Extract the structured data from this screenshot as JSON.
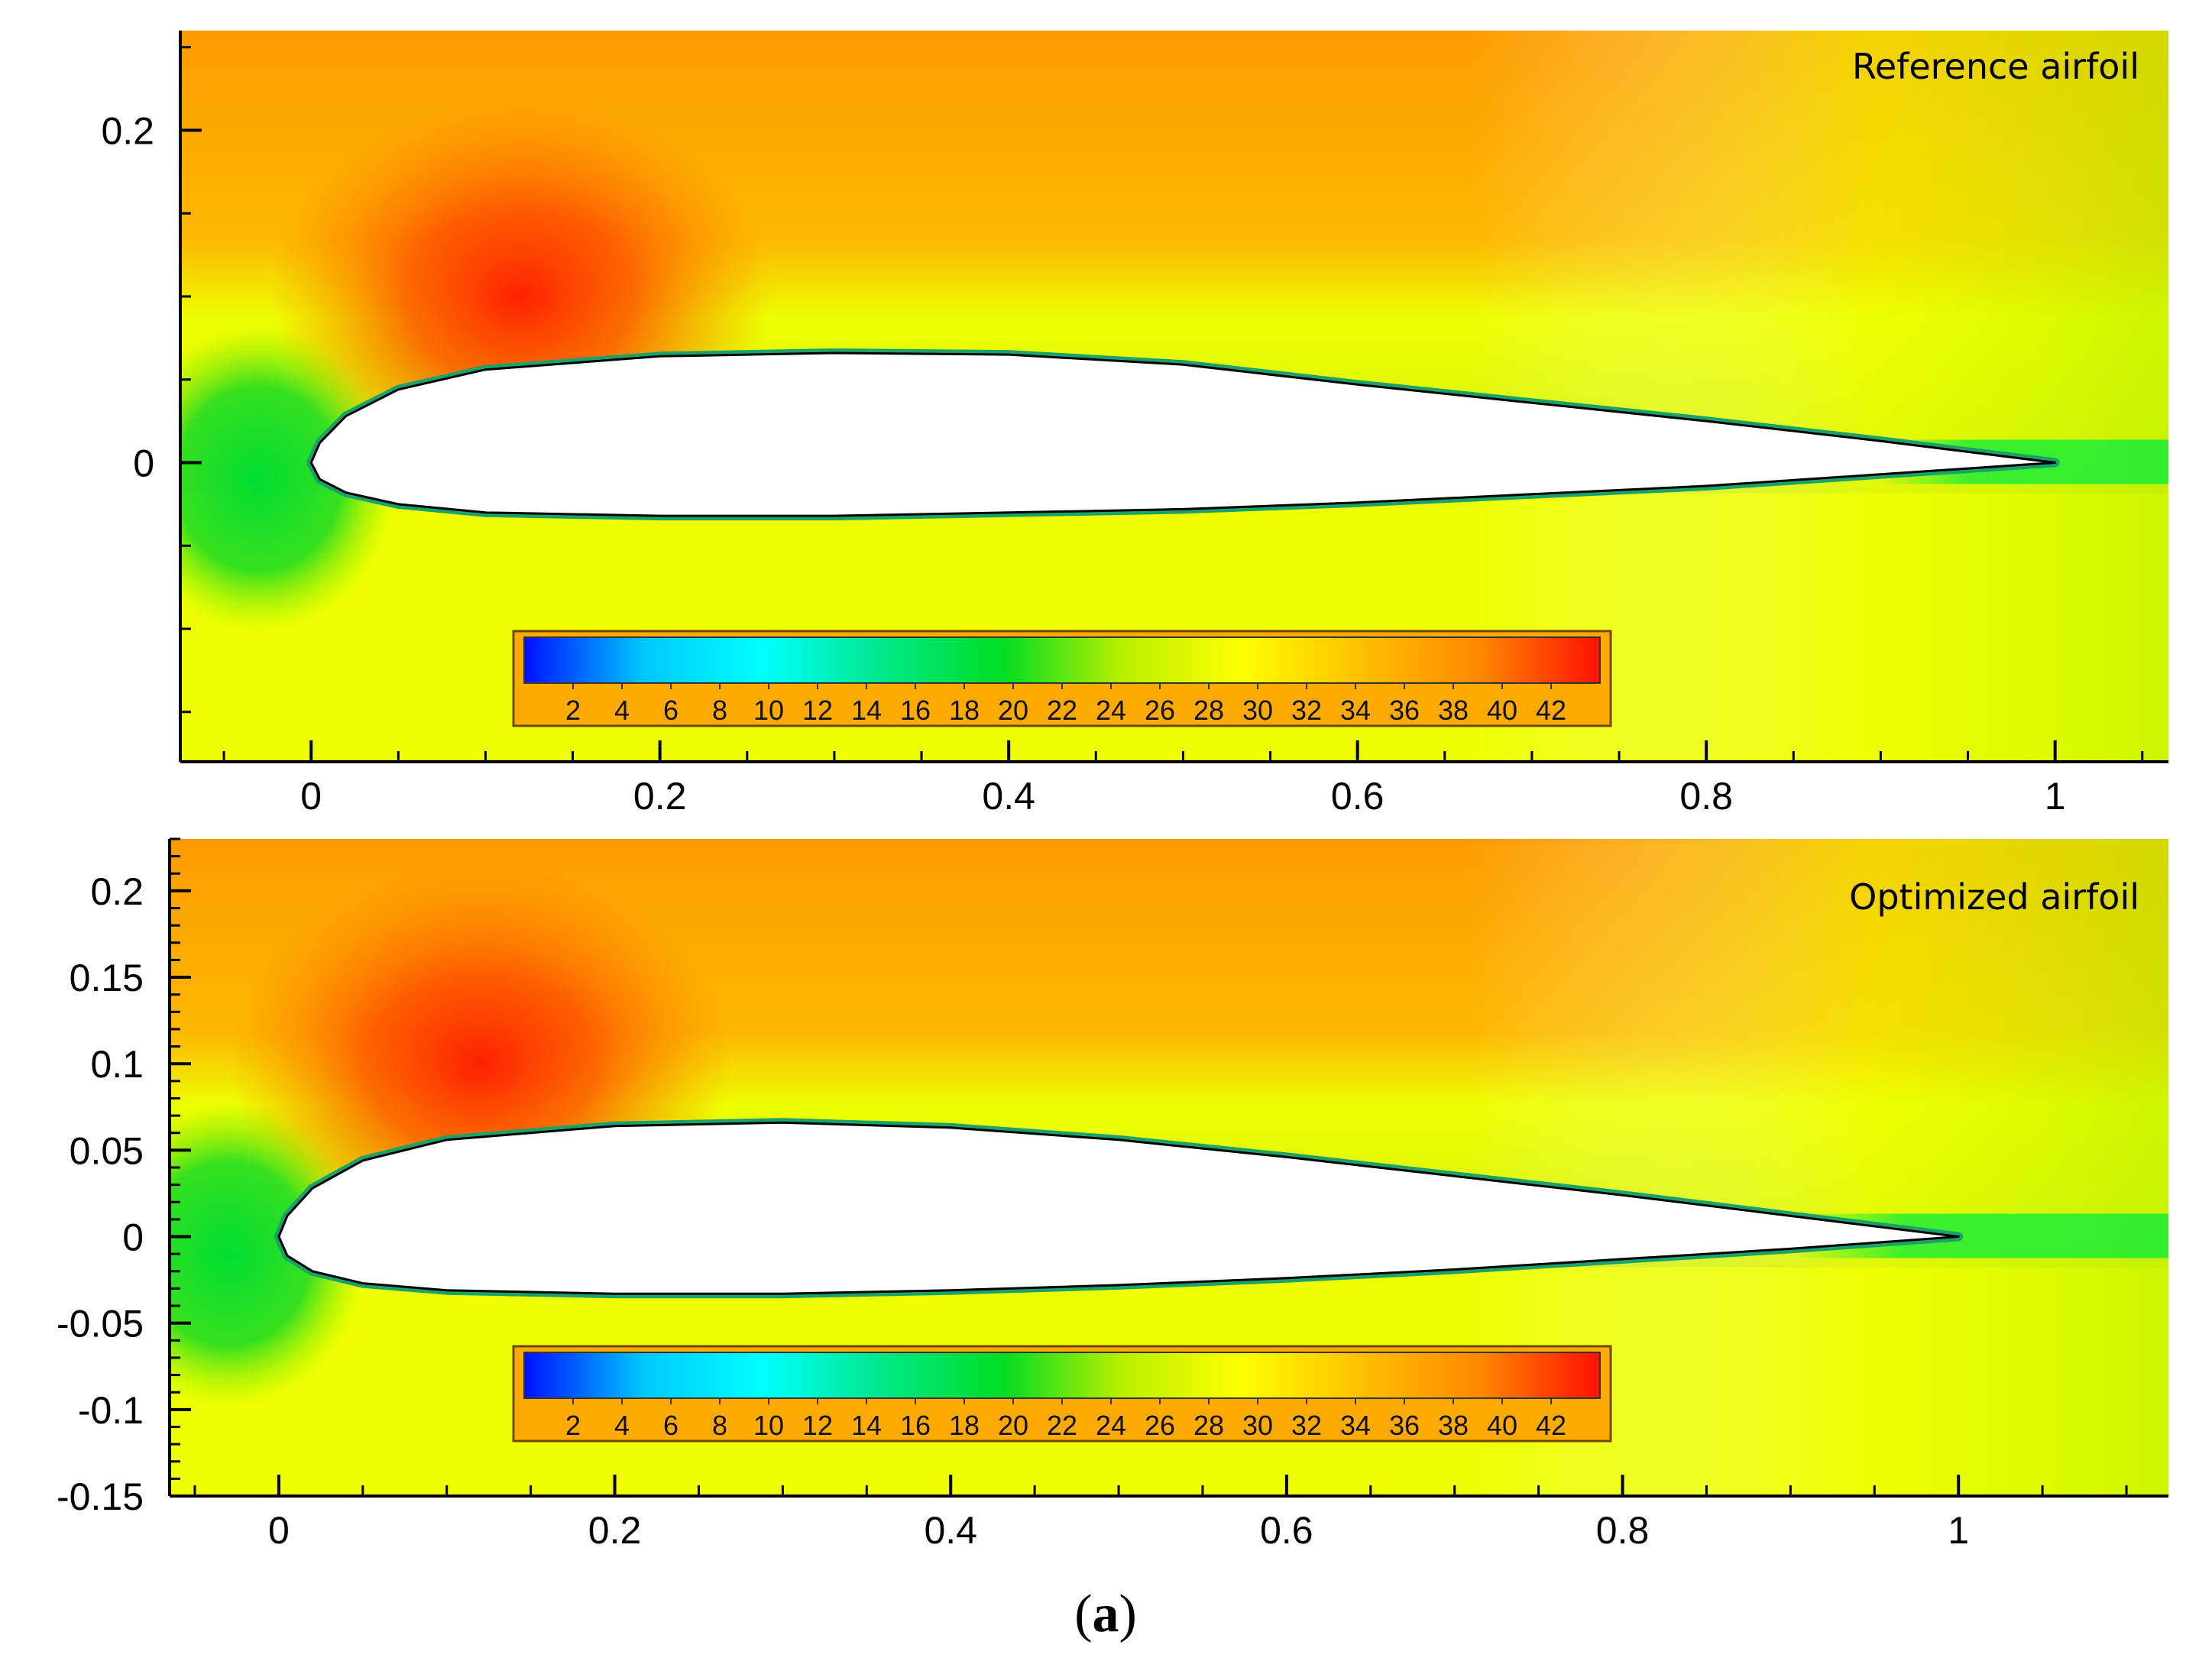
{
  "colors": {
    "scale": [
      "#0010ff",
      "#00c8ff",
      "#00ffff",
      "#00e88a",
      "#00dd22",
      "#b8f000",
      "#ffff00",
      "#ffc000",
      "#ff8800",
      "#ff1000"
    ],
    "field_green": "#22dd22",
    "field_yellow": "#eeff00",
    "field_orange": "#ff9000",
    "field_red": "#ff2000",
    "colorbar_frame": "#ffaa00",
    "airfoil": "#ffffff"
  },
  "caption": {
    "open": "(",
    "letter": "a",
    "close": ")"
  },
  "chart_data": [
    {
      "type": "heatmap",
      "title": "Reference airfoil",
      "xlabel": "",
      "ylabel": "",
      "xlim": [
        -0.075,
        1.065
      ],
      "ylim": [
        -0.18,
        0.26
      ],
      "xticks": [
        0,
        0.2,
        0.4,
        0.6,
        0.8,
        1
      ],
      "xtick_labels": [
        "0",
        "0.2",
        "0.4",
        "0.6",
        "0.8",
        "1"
      ],
      "yticks": [
        0,
        0.2
      ],
      "ytick_labels": [
        "0",
        "0.2"
      ],
      "airfoil_upper": [
        [
          0,
          0
        ],
        [
          0.005,
          0.012
        ],
        [
          0.02,
          0.028
        ],
        [
          0.05,
          0.044
        ],
        [
          0.1,
          0.056
        ],
        [
          0.2,
          0.064
        ],
        [
          0.3,
          0.066
        ],
        [
          0.4,
          0.065
        ],
        [
          0.5,
          0.059
        ],
        [
          0.6,
          0.047
        ],
        [
          0.7,
          0.036
        ],
        [
          0.8,
          0.025
        ],
        [
          0.9,
          0.013
        ],
        [
          1.0,
          0.0
        ]
      ],
      "airfoil_lower": [
        [
          0,
          0
        ],
        [
          0.005,
          -0.01
        ],
        [
          0.02,
          -0.018
        ],
        [
          0.05,
          -0.025
        ],
        [
          0.1,
          -0.03
        ],
        [
          0.2,
          -0.032
        ],
        [
          0.3,
          -0.032
        ],
        [
          0.4,
          -0.03
        ],
        [
          0.5,
          -0.028
        ],
        [
          0.6,
          -0.024
        ],
        [
          0.7,
          -0.019
        ],
        [
          0.8,
          -0.014
        ],
        [
          0.9,
          -0.007
        ],
        [
          1.0,
          0.0
        ]
      ],
      "colorbar": {
        "min": 0,
        "max": 44,
        "ticks": [
          2,
          4,
          6,
          8,
          10,
          12,
          14,
          16,
          18,
          20,
          22,
          24,
          26,
          28,
          30,
          32,
          34,
          36,
          38,
          40,
          42
        ],
        "tick_labels": [
          "2",
          "4",
          "6",
          "8",
          "10",
          "12",
          "14",
          "16",
          "18",
          "20",
          "22",
          "24",
          "26",
          "28",
          "30",
          "32",
          "34",
          "36",
          "38",
          "40",
          "42"
        ]
      }
    },
    {
      "type": "heatmap",
      "title": "Optimized airfoil",
      "xlabel": "",
      "ylabel": "",
      "xlim": [
        -0.065,
        1.125
      ],
      "ylim": [
        -0.15,
        0.23
      ],
      "xticks": [
        0,
        0.2,
        0.4,
        0.6,
        0.8,
        1
      ],
      "xtick_labels": [
        "0",
        "0.2",
        "0.4",
        "0.6",
        "0.8",
        "1"
      ],
      "yticks": [
        -0.15,
        -0.1,
        -0.05,
        0,
        0.05,
        0.1,
        0.15,
        0.2
      ],
      "ytick_labels": [
        "-0.15",
        "-0.1",
        "-0.05",
        "0",
        "0.05",
        "0.1",
        "0.15",
        "0.2"
      ],
      "airfoil_upper": [
        [
          0,
          0
        ],
        [
          0.005,
          0.012
        ],
        [
          0.02,
          0.028
        ],
        [
          0.05,
          0.044
        ],
        [
          0.1,
          0.056
        ],
        [
          0.2,
          0.064
        ],
        [
          0.3,
          0.066
        ],
        [
          0.4,
          0.063
        ],
        [
          0.5,
          0.056
        ],
        [
          0.6,
          0.046
        ],
        [
          0.7,
          0.035
        ],
        [
          0.8,
          0.024
        ],
        [
          0.9,
          0.012
        ],
        [
          1.0,
          0.0
        ]
      ],
      "airfoil_lower": [
        [
          0,
          0
        ],
        [
          0.005,
          -0.011
        ],
        [
          0.02,
          -0.02
        ],
        [
          0.05,
          -0.027
        ],
        [
          0.1,
          -0.031
        ],
        [
          0.2,
          -0.033
        ],
        [
          0.3,
          -0.033
        ],
        [
          0.4,
          -0.031
        ],
        [
          0.5,
          -0.028
        ],
        [
          0.6,
          -0.024
        ],
        [
          0.7,
          -0.019
        ],
        [
          0.8,
          -0.013
        ],
        [
          0.9,
          -0.007
        ],
        [
          1.0,
          0.0
        ]
      ],
      "colorbar": {
        "min": 0,
        "max": 44,
        "ticks": [
          2,
          4,
          6,
          8,
          10,
          12,
          14,
          16,
          18,
          20,
          22,
          24,
          26,
          28,
          30,
          32,
          34,
          36,
          38,
          40,
          42
        ],
        "tick_labels": [
          "2",
          "4",
          "6",
          "8",
          "10",
          "12",
          "14",
          "16",
          "18",
          "20",
          "22",
          "24",
          "26",
          "28",
          "30",
          "32",
          "34",
          "36",
          "38",
          "40",
          "42"
        ]
      }
    }
  ]
}
